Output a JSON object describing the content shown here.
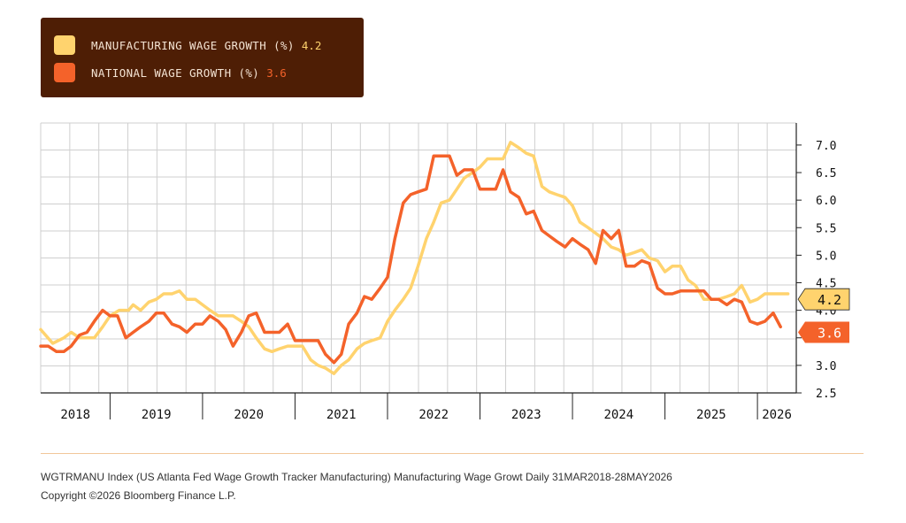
{
  "legend": {
    "items": [
      {
        "label": "MANUFACTURING WAGE GROWTH (%)",
        "value": "4.2",
        "color": "#ffd36e",
        "value_color": "#ffd36e"
      },
      {
        "label": "NATIONAL WAGE GROWTH (%)",
        "value": "3.6",
        "color": "#f4622a",
        "value_color": "#f4622a"
      }
    ]
  },
  "footer": {
    "line1": "WGTRMANU Index (US Atlanta Fed Wage Growth Tracker Manufacturing) Manufacturing Wage Growt Daily 31MAR2018-28MAY2026",
    "line2": "Copyright ©2026 Bloomberg Finance L.P."
  },
  "chart_data": {
    "type": "line",
    "x_axis": {
      "labels": [
        "2018",
        "2019",
        "2020",
        "2021",
        "2022",
        "2023",
        "2024",
        "2025",
        "2026"
      ],
      "range": [
        2018.25,
        2026.42
      ]
    },
    "y_axis": {
      "ticks": [
        "7.0",
        "6.5",
        "6.0",
        "5.5",
        "5.0",
        "4.5",
        "4.0",
        "3.5",
        "3.0",
        "2.5"
      ],
      "range": [
        2.5,
        7.4
      ],
      "position": "right"
    },
    "grid": true,
    "series": [
      {
        "name": "MANUFACTURING WAGE GROWTH (%)",
        "color": "#ffd36e",
        "last_value": "4.2",
        "points": [
          [
            2018.25,
            3.65
          ],
          [
            2018.38,
            3.4
          ],
          [
            2018.5,
            3.5
          ],
          [
            2018.58,
            3.6
          ],
          [
            2018.67,
            3.5
          ],
          [
            2018.83,
            3.5
          ],
          [
            2018.92,
            3.7
          ],
          [
            2019.0,
            3.9
          ],
          [
            2019.1,
            4.0
          ],
          [
            2019.2,
            4.0
          ],
          [
            2019.25,
            4.1
          ],
          [
            2019.33,
            4.0
          ],
          [
            2019.42,
            4.15
          ],
          [
            2019.5,
            4.2
          ],
          [
            2019.58,
            4.3
          ],
          [
            2019.67,
            4.3
          ],
          [
            2019.75,
            4.35
          ],
          [
            2019.83,
            4.2
          ],
          [
            2019.92,
            4.2
          ],
          [
            2020.0,
            4.1
          ],
          [
            2020.08,
            4.0
          ],
          [
            2020.17,
            3.9
          ],
          [
            2020.25,
            3.9
          ],
          [
            2020.33,
            3.9
          ],
          [
            2020.42,
            3.8
          ],
          [
            2020.5,
            3.7
          ],
          [
            2020.58,
            3.5
          ],
          [
            2020.67,
            3.3
          ],
          [
            2020.75,
            3.25
          ],
          [
            2020.83,
            3.3
          ],
          [
            2020.92,
            3.35
          ],
          [
            2021.0,
            3.35
          ],
          [
            2021.08,
            3.35
          ],
          [
            2021.17,
            3.1
          ],
          [
            2021.25,
            3.0
          ],
          [
            2021.33,
            2.95
          ],
          [
            2021.42,
            2.85
          ],
          [
            2021.5,
            3.0
          ],
          [
            2021.58,
            3.1
          ],
          [
            2021.67,
            3.3
          ],
          [
            2021.75,
            3.4
          ],
          [
            2021.83,
            3.45
          ],
          [
            2021.92,
            3.5
          ],
          [
            2022.0,
            3.8
          ],
          [
            2022.08,
            4.0
          ],
          [
            2022.17,
            4.2
          ],
          [
            2022.25,
            4.4
          ],
          [
            2022.33,
            4.8
          ],
          [
            2022.42,
            5.3
          ],
          [
            2022.5,
            5.6
          ],
          [
            2022.58,
            5.95
          ],
          [
            2022.67,
            6.0
          ],
          [
            2022.75,
            6.2
          ],
          [
            2022.83,
            6.4
          ],
          [
            2022.92,
            6.5
          ],
          [
            2023.0,
            6.6
          ],
          [
            2023.08,
            6.75
          ],
          [
            2023.17,
            6.75
          ],
          [
            2023.25,
            6.75
          ],
          [
            2023.33,
            7.05
          ],
          [
            2023.42,
            6.95
          ],
          [
            2023.5,
            6.85
          ],
          [
            2023.58,
            6.8
          ],
          [
            2023.67,
            6.25
          ],
          [
            2023.75,
            6.15
          ],
          [
            2023.83,
            6.1
          ],
          [
            2023.92,
            6.05
          ],
          [
            2024.0,
            5.9
          ],
          [
            2024.08,
            5.6
          ],
          [
            2024.17,
            5.5
          ],
          [
            2024.25,
            5.4
          ],
          [
            2024.33,
            5.3
          ],
          [
            2024.42,
            5.15
          ],
          [
            2024.5,
            5.1
          ],
          [
            2024.58,
            5.0
          ],
          [
            2024.67,
            5.05
          ],
          [
            2024.75,
            5.1
          ],
          [
            2024.83,
            4.95
          ],
          [
            2024.92,
            4.9
          ],
          [
            2025.0,
            4.7
          ],
          [
            2025.08,
            4.8
          ],
          [
            2025.17,
            4.8
          ],
          [
            2025.25,
            4.55
          ],
          [
            2025.33,
            4.45
          ],
          [
            2025.42,
            4.2
          ],
          [
            2025.5,
            4.2
          ],
          [
            2025.58,
            4.2
          ],
          [
            2025.67,
            4.25
          ],
          [
            2025.75,
            4.3
          ],
          [
            2025.83,
            4.45
          ],
          [
            2025.92,
            4.15
          ],
          [
            2026.0,
            4.2
          ],
          [
            2026.08,
            4.3
          ],
          [
            2026.17,
            4.3
          ],
          [
            2026.25,
            4.3
          ],
          [
            2026.33,
            4.3
          ]
        ]
      },
      {
        "name": "NATIONAL WAGE GROWTH (%)",
        "color": "#f4622a",
        "last_value": "3.6",
        "points": [
          [
            2018.25,
            3.35
          ],
          [
            2018.33,
            3.35
          ],
          [
            2018.42,
            3.25
          ],
          [
            2018.5,
            3.25
          ],
          [
            2018.58,
            3.35
          ],
          [
            2018.67,
            3.55
          ],
          [
            2018.75,
            3.6
          ],
          [
            2018.83,
            3.8
          ],
          [
            2018.92,
            4.0
          ],
          [
            2019.0,
            3.9
          ],
          [
            2019.08,
            3.9
          ],
          [
            2019.17,
            3.5
          ],
          [
            2019.25,
            3.6
          ],
          [
            2019.33,
            3.7
          ],
          [
            2019.42,
            3.8
          ],
          [
            2019.5,
            3.95
          ],
          [
            2019.58,
            3.95
          ],
          [
            2019.67,
            3.75
          ],
          [
            2019.75,
            3.7
          ],
          [
            2019.83,
            3.6
          ],
          [
            2019.92,
            3.75
          ],
          [
            2020.0,
            3.75
          ],
          [
            2020.08,
            3.9
          ],
          [
            2020.17,
            3.8
          ],
          [
            2020.25,
            3.65
          ],
          [
            2020.33,
            3.35
          ],
          [
            2020.42,
            3.6
          ],
          [
            2020.5,
            3.9
          ],
          [
            2020.58,
            3.95
          ],
          [
            2020.67,
            3.6
          ],
          [
            2020.75,
            3.6
          ],
          [
            2020.83,
            3.6
          ],
          [
            2020.92,
            3.75
          ],
          [
            2021.0,
            3.45
          ],
          [
            2021.08,
            3.45
          ],
          [
            2021.17,
            3.45
          ],
          [
            2021.25,
            3.45
          ],
          [
            2021.33,
            3.2
          ],
          [
            2021.42,
            3.05
          ],
          [
            2021.5,
            3.2
          ],
          [
            2021.58,
            3.75
          ],
          [
            2021.67,
            3.95
          ],
          [
            2021.75,
            4.25
          ],
          [
            2021.83,
            4.2
          ],
          [
            2021.92,
            4.4
          ],
          [
            2022.0,
            4.6
          ],
          [
            2022.08,
            5.3
          ],
          [
            2022.17,
            5.95
          ],
          [
            2022.25,
            6.1
          ],
          [
            2022.33,
            6.15
          ],
          [
            2022.42,
            6.2
          ],
          [
            2022.5,
            6.8
          ],
          [
            2022.58,
            6.8
          ],
          [
            2022.67,
            6.8
          ],
          [
            2022.75,
            6.45
          ],
          [
            2022.83,
            6.55
          ],
          [
            2022.92,
            6.55
          ],
          [
            2023.0,
            6.2
          ],
          [
            2023.08,
            6.2
          ],
          [
            2023.17,
            6.2
          ],
          [
            2023.25,
            6.55
          ],
          [
            2023.33,
            6.15
          ],
          [
            2023.42,
            6.05
          ],
          [
            2023.5,
            5.75
          ],
          [
            2023.58,
            5.8
          ],
          [
            2023.67,
            5.45
          ],
          [
            2023.75,
            5.35
          ],
          [
            2023.83,
            5.25
          ],
          [
            2023.92,
            5.15
          ],
          [
            2024.0,
            5.3
          ],
          [
            2024.08,
            5.2
          ],
          [
            2024.17,
            5.1
          ],
          [
            2024.25,
            4.85
          ],
          [
            2024.33,
            5.45
          ],
          [
            2024.42,
            5.3
          ],
          [
            2024.5,
            5.45
          ],
          [
            2024.58,
            4.8
          ],
          [
            2024.67,
            4.8
          ],
          [
            2024.75,
            4.9
          ],
          [
            2024.83,
            4.85
          ],
          [
            2024.92,
            4.4
          ],
          [
            2025.0,
            4.3
          ],
          [
            2025.08,
            4.3
          ],
          [
            2025.17,
            4.35
          ],
          [
            2025.25,
            4.35
          ],
          [
            2025.33,
            4.35
          ],
          [
            2025.42,
            4.35
          ],
          [
            2025.5,
            4.2
          ],
          [
            2025.58,
            4.2
          ],
          [
            2025.67,
            4.1
          ],
          [
            2025.75,
            4.2
          ],
          [
            2025.83,
            4.15
          ],
          [
            2025.92,
            3.8
          ],
          [
            2026.0,
            3.75
          ],
          [
            2026.08,
            3.8
          ],
          [
            2026.17,
            3.95
          ],
          [
            2026.25,
            3.7
          ]
        ]
      }
    ]
  }
}
